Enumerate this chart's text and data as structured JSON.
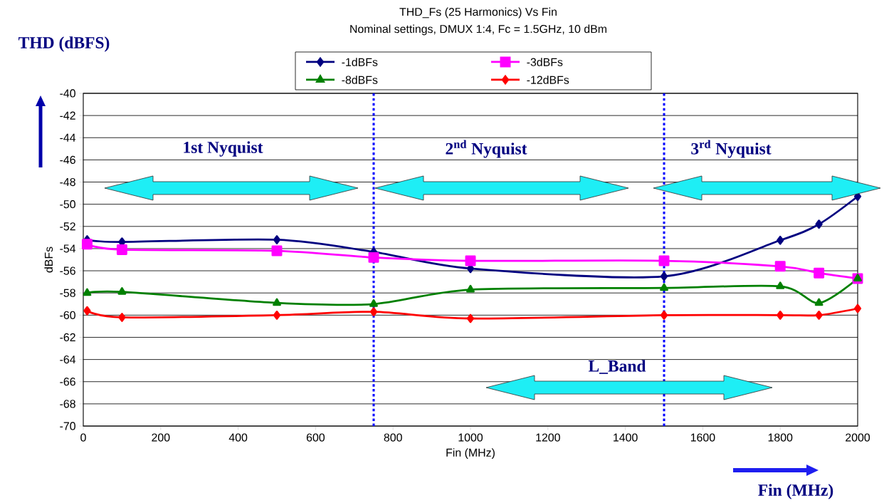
{
  "chart_data": {
    "type": "line",
    "title": "THD_Fs (25 Harmonics) Vs Fin",
    "subtitle": "Nominal settings, DMUX 1:4, Fc = 1.5GHz, 10 dBm",
    "xlabel": "Fin (MHz)",
    "ylabel": "dBFs",
    "x": [
      10,
      100,
      500,
      750,
      1000,
      1500,
      1800,
      1900,
      2000
    ],
    "series": [
      {
        "name": "-1dBFs",
        "color": "#000080",
        "marker": "diamond",
        "values": [
          -53.2,
          -53.4,
          -53.2,
          -54.3,
          -55.8,
          -56.5,
          -53.25,
          -51.8,
          -49.3
        ]
      },
      {
        "name": "-3dBFs",
        "color": "#ff00ff",
        "marker": "square",
        "values": [
          -53.6,
          -54.1,
          -54.2,
          -54.8,
          -55.1,
          -55.1,
          -55.6,
          -56.2,
          -56.7
        ]
      },
      {
        "name": "-8dBFs",
        "color": "#008000",
        "marker": "triangle",
        "values": [
          -58.0,
          -57.9,
          -58.9,
          -59.0,
          -57.7,
          -57.55,
          -57.4,
          -58.9,
          -56.7
        ]
      },
      {
        "name": "-12dBFs",
        "color": "#ff0000",
        "marker": "diamond",
        "values": [
          -59.6,
          -60.2,
          -60.0,
          -59.7,
          -60.3,
          -60.0,
          -60.0,
          -60.0,
          -59.4
        ]
      }
    ],
    "xlim": [
      0,
      2000
    ],
    "ylim": [
      -70,
      -40
    ],
    "xticks": [
      0,
      200,
      400,
      600,
      800,
      1000,
      1200,
      1400,
      1600,
      1800,
      2000
    ],
    "yticks": [
      -70,
      -68,
      -66,
      -64,
      -62,
      -60,
      -58,
      -56,
      -54,
      -52,
      -50,
      -48,
      -46,
      -44,
      -42,
      -40
    ],
    "ref_lines": [
      {
        "axis": "x",
        "value": 750,
        "color": "#0000ff",
        "line_style": "dotted"
      },
      {
        "axis": "x",
        "value": 1500,
        "color": "#0000ff",
        "line_style": "dotted"
      }
    ],
    "annotations": [
      "THD (dBFS)",
      "1st Nyquist",
      "2$^{nd}$  Nyquist",
      "3$^{rd}$  Nyquist",
      "L_Band",
      "Fin (MHz)"
    ],
    "grid": "y",
    "legend": "top",
    "line_style": "solid"
  }
}
